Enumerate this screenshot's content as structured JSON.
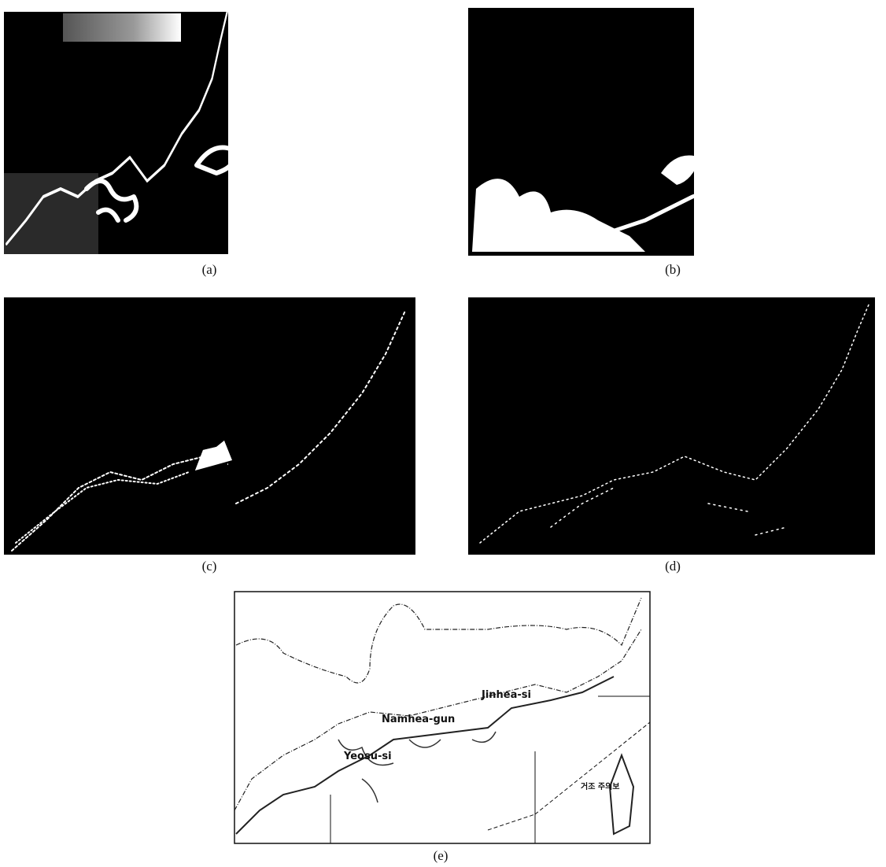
{
  "panels": [
    {
      "label": "(a)"
    },
    {
      "label": "(b)"
    },
    {
      "label": "(c)"
    },
    {
      "label": "(d)"
    },
    {
      "label": "(e)"
    }
  ],
  "map": {
    "labels": [
      "Jinhea-si",
      "Namhea-gun",
      "Yeosu-si",
      "거조 주의보"
    ]
  }
}
